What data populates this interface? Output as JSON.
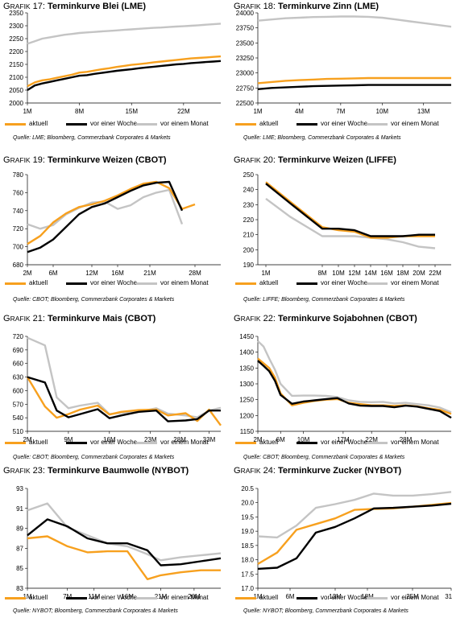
{
  "legend_labels": [
    "aktuell",
    "vor einer Woche",
    "vor einem Monat"
  ],
  "series_colors": [
    "#F7A01E",
    "#000000",
    "#C4C4C4"
  ],
  "charts": [
    {
      "caption_prefix": "Grafik",
      "caption_num": "17:",
      "caption_title": "Terminkurve Blei (LME)",
      "source": "Quelle: LME; Bloomberg, Commerzbank Corporates & Markets",
      "chart_data": {
        "type": "line",
        "x": [
          1,
          2,
          3,
          4,
          5,
          6,
          7,
          8,
          9,
          10,
          11,
          12,
          13,
          14,
          15,
          16,
          17,
          18,
          19,
          20,
          21,
          22,
          23,
          24,
          25,
          26,
          27
        ],
        "xticks": [
          1,
          8,
          15,
          22
        ],
        "xticklabels": [
          "1M",
          "8M",
          "15M",
          "22M"
        ],
        "yticks": [
          2000,
          2050,
          2100,
          2150,
          2200,
          2250,
          2300,
          2350
        ],
        "yticklabels": [
          "2000",
          "2050",
          "2100",
          "2150",
          "2200",
          "2250",
          "2300",
          "2350"
        ],
        "ylim": [
          2000,
          2350
        ],
        "xlim": [
          1,
          27
        ],
        "series": [
          {
            "name": "aktuell",
            "values": [
              2065,
              2080,
              2088,
              2092,
              2098,
              2104,
              2110,
              2118,
              2121,
              2126,
              2131,
              2135,
              2140,
              2144,
              2148,
              2151,
              2154,
              2158,
              2161,
              2164,
              2167,
              2170,
              2173,
              2175,
              2177,
              2179,
              2181
            ]
          },
          {
            "name": "vor einer Woche",
            "values": [
              2050,
              2068,
              2076,
              2082,
              2088,
              2094,
              2100,
              2106,
              2108,
              2113,
              2117,
              2121,
              2125,
              2128,
              2131,
              2135,
              2138,
              2141,
              2144,
              2147,
              2150,
              2152,
              2155,
              2157,
              2159,
              2161,
              2163
            ]
          },
          {
            "name": "vor einem Monat",
            "values": [
              2230,
              2240,
              2250,
              2255,
              2260,
              2265,
              2268,
              2272,
              2274,
              2276,
              2278,
              2280,
              2282,
              2284,
              2286,
              2288,
              2290,
              2292,
              2293,
              2295,
              2297,
              2298,
              2300,
              2302,
              2304,
              2306,
              2308
            ]
          }
        ]
      }
    },
    {
      "caption_prefix": "Grafik",
      "caption_num": "18:",
      "caption_title": "Terminkurve Zinn (LME)",
      "source": "Quelle: LME; Bloomberg, Commerzbank Corporates & Markets",
      "chart_data": {
        "type": "line",
        "x": [
          1,
          2,
          3,
          4,
          5,
          6,
          7,
          8,
          9,
          10,
          11,
          12,
          13,
          14,
          15
        ],
        "xticks": [
          1,
          4,
          7,
          10,
          13
        ],
        "xticklabels": [
          "1M",
          "4M",
          "7M",
          "10M",
          "13M"
        ],
        "yticks": [
          22500,
          22750,
          23000,
          23250,
          23500,
          23750,
          24000
        ],
        "yticklabels": [
          "22500",
          "22750",
          "23000",
          "23250",
          "23500",
          "23750",
          "24000"
        ],
        "ylim": [
          22500,
          24000
        ],
        "xlim": [
          1,
          15
        ],
        "series": [
          {
            "name": "aktuell",
            "values": [
              22830,
              22850,
              22870,
              22880,
              22890,
              22900,
              22905,
              22910,
              22915,
              22915,
              22915,
              22915,
              22915,
              22915,
              22915
            ]
          },
          {
            "name": "vor einer Woche",
            "values": [
              22730,
              22750,
              22760,
              22770,
              22780,
              22785,
              22790,
              22795,
              22800,
              22800,
              22800,
              22800,
              22800,
              22800,
              22800
            ]
          },
          {
            "name": "vor einem Monat",
            "values": [
              23870,
              23890,
              23910,
              23920,
              23930,
              23935,
              23940,
              23940,
              23935,
              23920,
              23890,
              23860,
              23830,
              23800,
              23770
            ]
          }
        ]
      }
    },
    {
      "caption_prefix": "Grafik",
      "caption_num": "19:",
      "caption_title": "Terminkurve Weizen (CBOT)",
      "source": "Quelle: CBOT; Bloomberg, Commerzbank Corporates & Markets",
      "chart_data": {
        "type": "line",
        "x": [
          2,
          4,
          6,
          8,
          10,
          12,
          14,
          16,
          18,
          20,
          22,
          24,
          26,
          28,
          30,
          32
        ],
        "xticks": [
          2,
          6,
          12,
          16,
          21,
          28
        ],
        "xticklabels": [
          "2M",
          "6M",
          "12M",
          "16M",
          "21M",
          "28M"
        ],
        "yticks": [
          680,
          700,
          720,
          740,
          760,
          780
        ],
        "yticklabels": [
          "680",
          "700",
          "720",
          "740",
          "760",
          "780"
        ],
        "ylim": [
          680,
          780
        ],
        "xlim": [
          2,
          32
        ],
        "series": [
          {
            "name": "aktuell",
            "values": [
              703,
              712,
              727,
              737,
              744,
              747,
              751,
              757,
              764,
              770,
              772,
              765,
              742,
              747,
              null,
              null
            ]
          },
          {
            "name": "vor einer Woche",
            "values": [
              694,
              699,
              708,
              722,
              736,
              744,
              748,
              755,
              762,
              768,
              771,
              772,
              740,
              null,
              null,
              null
            ]
          },
          {
            "name": "vor einem Monat",
            "values": [
              725,
              720,
              724,
              736,
              743,
              749,
              750,
              742,
              746,
              755,
              760,
              763,
              725,
              null,
              null,
              null
            ]
          }
        ]
      }
    },
    {
      "caption_prefix": "Grafik",
      "caption_num": "20:",
      "caption_title": "Terminkurve Weizen (LIFFE)",
      "source": "Quelle: LIFFE; Bloomberg, Commerzbank Corporates & Markets",
      "chart_data": {
        "type": "line",
        "x": [
          1,
          4,
          8,
          10,
          12,
          14,
          16,
          18,
          20,
          22
        ],
        "xticks": [
          1,
          8,
          10,
          12,
          14,
          16,
          18,
          20,
          22
        ],
        "xticklabels": [
          "1M",
          "8M",
          "10M",
          "12M",
          "14M",
          "16M",
          "18M",
          "20M",
          "22M"
        ],
        "yticks": [
          190,
          200,
          210,
          220,
          230,
          240,
          250
        ],
        "yticklabels": [
          "190",
          "200",
          "210",
          "220",
          "230",
          "240",
          "250"
        ],
        "ylim": [
          190,
          250
        ],
        "xlim": [
          0,
          24
        ],
        "series": [
          {
            "name": "aktuell",
            "values": [
              245,
              232,
              215,
              213,
              212,
              208,
              208,
              209,
              209,
              209
            ]
          },
          {
            "name": "vor einer Woche",
            "values": [
              244,
              231,
              214,
              214,
              213,
              209,
              209,
              209,
              210,
              210
            ]
          },
          {
            "name": "vor einem Monat",
            "values": [
              234,
              222,
              209,
              209,
              209,
              208,
              207,
              205,
              202,
              201
            ]
          }
        ]
      }
    },
    {
      "caption_prefix": "Grafik",
      "caption_num": "21:",
      "caption_title": "Terminkurve Mais (CBOT)",
      "source": "Quelle: CBOT; Bloomberg, Commerzbank Corporates & Markets",
      "chart_data": {
        "type": "line",
        "x": [
          2,
          5,
          7,
          9,
          11,
          14,
          16,
          18,
          21,
          24,
          26,
          29,
          31,
          33,
          35
        ],
        "xticks": [
          2,
          9,
          16,
          23,
          28,
          33
        ],
        "xticklabels": [
          "2M",
          "9M",
          "16M",
          "23M",
          "28M",
          "33M"
        ],
        "yticks": [
          510,
          540,
          570,
          600,
          630,
          660,
          690,
          720
        ],
        "yticklabels": [
          "510",
          "540",
          "570",
          "600",
          "630",
          "660",
          "690",
          "720"
        ],
        "ylim": [
          510,
          720
        ],
        "xlim": [
          2,
          35
        ],
        "series": [
          {
            "name": "aktuell",
            "values": [
              630,
              565,
              540,
              548,
              558,
              567,
              547,
              553,
              557,
              558,
              545,
              550,
              533,
              558,
              523
            ]
          },
          {
            "name": "vor einer Woche",
            "values": [
              630,
              618,
              556,
              541,
              548,
              559,
              539,
              545,
              553,
              556,
              532,
              534,
              537,
              556,
              556
            ]
          },
          {
            "name": "vor einem Monat",
            "values": [
              717,
              700,
              585,
              561,
              567,
              573,
              548,
              551,
              553,
              561,
              549,
              545,
              541,
              556,
              562
            ]
          }
        ]
      }
    },
    {
      "caption_prefix": "Grafik",
      "caption_num": "22:",
      "caption_title": "Terminkurve Sojabohnen (CBOT)",
      "source": "Quelle: CBOT; Bloomberg, Commerzbank Corporates & Markets",
      "chart_data": {
        "type": "line",
        "x": [
          2,
          3,
          4,
          5,
          6,
          8,
          10,
          12,
          14,
          16,
          18,
          20,
          22,
          24,
          26,
          28,
          30,
          32,
          34,
          36
        ],
        "xticks": [
          2,
          6,
          10,
          17,
          22,
          28
        ],
        "xticklabels": [
          "2M",
          "6M",
          "10M",
          "17M",
          "22M",
          "28M"
        ],
        "yticks": [
          1150,
          1200,
          1250,
          1300,
          1350,
          1400,
          1450
        ],
        "yticklabels": [
          "1150",
          "1200",
          "1250",
          "1300",
          "1350",
          "1400",
          "1450"
        ],
        "ylim": [
          1150,
          1450
        ],
        "xlim": [
          2,
          36
        ],
        "series": [
          {
            "name": "aktuell",
            "values": [
              1380,
              1365,
              1350,
              1320,
              1270,
              1232,
              1240,
              1246,
              1250,
              1252,
              1240,
              1236,
              1232,
              1232,
              1230,
              1232,
              1229,
              1223,
              1218,
              1205
            ]
          },
          {
            "name": "vor einer Woche",
            "values": [
              1373,
              1357,
              1340,
              1310,
              1265,
              1237,
              1244,
              1248,
              1252,
              1255,
              1238,
              1231,
              1230,
              1230,
              1226,
              1231,
              1228,
              1221,
              1214,
              1193
            ]
          },
          {
            "name": "vor einem Monat",
            "values": [
              1435,
              1418,
              1380,
              1345,
              1300,
              1262,
              1263,
              1263,
              1262,
              1258,
              1248,
              1243,
              1242,
              1243,
              1238,
              1240,
              1236,
              1232,
              1225,
              1210
            ]
          }
        ]
      }
    },
    {
      "caption_prefix": "Grafik",
      "caption_num": "23:",
      "caption_title": "Terminkurve Baumwolle (NYBOT)",
      "source": "Quelle: NYBOT; Bloomberg, Commerzbank Corporates & Markets",
      "chart_data": {
        "type": "line",
        "x": [
          1,
          4,
          7,
          10,
          13,
          16,
          19,
          21,
          24,
          27,
          30
        ],
        "xticks": [
          1,
          7,
          11,
          16,
          21,
          26
        ],
        "xticklabels": [
          "1M",
          "7M",
          "11M",
          "16M",
          "21M",
          "26M"
        ],
        "yticks": [
          83,
          85,
          87,
          89,
          91,
          93
        ],
        "yticklabels": [
          "83",
          "85",
          "87",
          "89",
          "91",
          "93"
        ],
        "ylim": [
          83,
          93
        ],
        "xlim": [
          1,
          30
        ],
        "series": [
          {
            "name": "aktuell",
            "values": [
              88.0,
              88.2,
              87.2,
              86.6,
              86.7,
              86.7,
              83.9,
              84.3,
              84.6,
              84.8,
              84.8
            ]
          },
          {
            "name": "vor einer Woche",
            "values": [
              88.3,
              89.9,
              89.2,
              88.0,
              87.5,
              87.5,
              86.8,
              85.3,
              85.4,
              85.7,
              86.0
            ]
          },
          {
            "name": "vor einem Monat",
            "values": [
              90.8,
              91.5,
              89.1,
              88.3,
              87.5,
              87.2,
              86.4,
              85.8,
              86.1,
              86.3,
              86.5
            ]
          }
        ]
      }
    },
    {
      "caption_prefix": "Grafik",
      "caption_num": "24:",
      "caption_title": "Terminkurve Zucker (NYBOT)",
      "source": "Quelle: NYBOT; Bloomberg, Commerzbank Corporates & Markets",
      "chart_data": {
        "type": "line",
        "x": [
          1,
          4,
          7,
          10,
          13,
          16,
          19,
          22,
          25,
          28,
          31
        ],
        "xticks": [
          1,
          6,
          13,
          18,
          25,
          31
        ],
        "xticklabels": [
          "1M",
          "6M",
          "13M",
          "18M",
          "25M",
          "31M"
        ],
        "yticks": [
          17.0,
          17.5,
          18.0,
          18.5,
          19.0,
          19.5,
          20.0,
          20.5
        ],
        "yticklabels": [
          "17.0",
          "17.5",
          "18.0",
          "18.5",
          "19.0",
          "19.5",
          "20.0",
          "20.5"
        ],
        "ylim": [
          17.0,
          20.5
        ],
        "xlim": [
          1,
          31
        ],
        "series": [
          {
            "name": "aktuell",
            "values": [
              17.85,
              18.25,
              19.05,
              19.25,
              19.45,
              19.75,
              19.78,
              19.8,
              19.86,
              19.92,
              19.99
            ]
          },
          {
            "name": "vor einer Woche",
            "values": [
              17.68,
              17.72,
              18.05,
              18.95,
              19.15,
              19.45,
              19.8,
              19.82,
              19.86,
              19.9,
              19.96
            ]
          },
          {
            "name": "vor einem Monat",
            "values": [
              18.82,
              18.78,
              19.2,
              19.82,
              19.95,
              20.1,
              20.32,
              20.25,
              20.25,
              20.3,
              20.38
            ]
          }
        ]
      }
    }
  ]
}
